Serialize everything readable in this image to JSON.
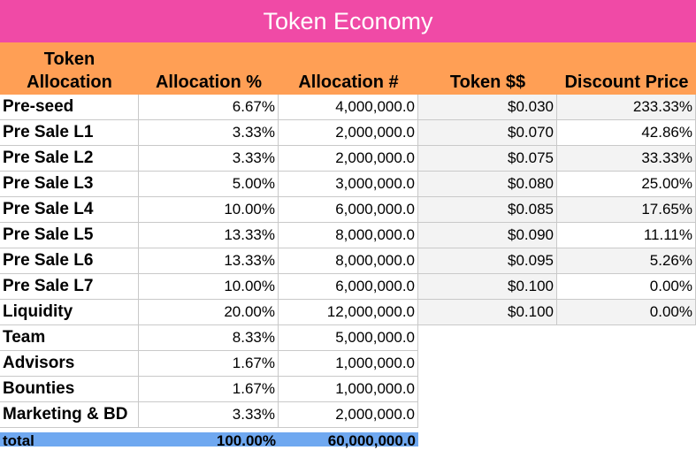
{
  "title": "Token Economy",
  "headers": {
    "token_allocation": "Token Allocation",
    "allocation_pct": "Allocation %",
    "allocation_num": "Allocation #",
    "token_price": "Token $$",
    "discount_price": "Discount Price"
  },
  "rows": [
    {
      "name": "Pre-seed",
      "pct": "6.67%",
      "num": "4,000,000.0",
      "price": "$0.030",
      "discount": "233.33%"
    },
    {
      "name": "Pre Sale L1",
      "pct": "3.33%",
      "num": "2,000,000.0",
      "price": "$0.070",
      "discount": "42.86%"
    },
    {
      "name": "Pre Sale L2",
      "pct": "3.33%",
      "num": "2,000,000.0",
      "price": "$0.075",
      "discount": "33.33%"
    },
    {
      "name": "Pre Sale L3",
      "pct": "5.00%",
      "num": "3,000,000.0",
      "price": "$0.080",
      "discount": "25.00%"
    },
    {
      "name": "Pre Sale L4",
      "pct": "10.00%",
      "num": "6,000,000.0",
      "price": "$0.085",
      "discount": "17.65%"
    },
    {
      "name": "Pre Sale L5",
      "pct": "13.33%",
      "num": "8,000,000.0",
      "price": "$0.090",
      "discount": "11.11%"
    },
    {
      "name": "Pre Sale L6",
      "pct": "13.33%",
      "num": "8,000,000.0",
      "price": "$0.095",
      "discount": "5.26%"
    },
    {
      "name": "Pre Sale L7",
      "pct": "10.00%",
      "num": "6,000,000.0",
      "price": "$0.100",
      "discount": "0.00%"
    },
    {
      "name": "Liquidity",
      "pct": "20.00%",
      "num": "12,000,000.0",
      "price": "$0.100",
      "discount": "0.00%"
    },
    {
      "name": "Team",
      "pct": "8.33%",
      "num": "5,000,000.0"
    },
    {
      "name": "Advisors",
      "pct": "1.67%",
      "num": "1,000,000.0"
    },
    {
      "name": "Bounties",
      "pct": "1.67%",
      "num": "1,000,000.0"
    },
    {
      "name": "Marketing & BD",
      "pct": "3.33%",
      "num": "2,000,000.0"
    }
  ],
  "total": {
    "name": "total",
    "pct": "100.00%",
    "num": "60,000,000.0"
  },
  "colors": {
    "title_bg": "#f04aa6",
    "header_bg": "#ff9f55",
    "total_bg": "#6fa8f0",
    "shade": "#f3f3f3"
  }
}
